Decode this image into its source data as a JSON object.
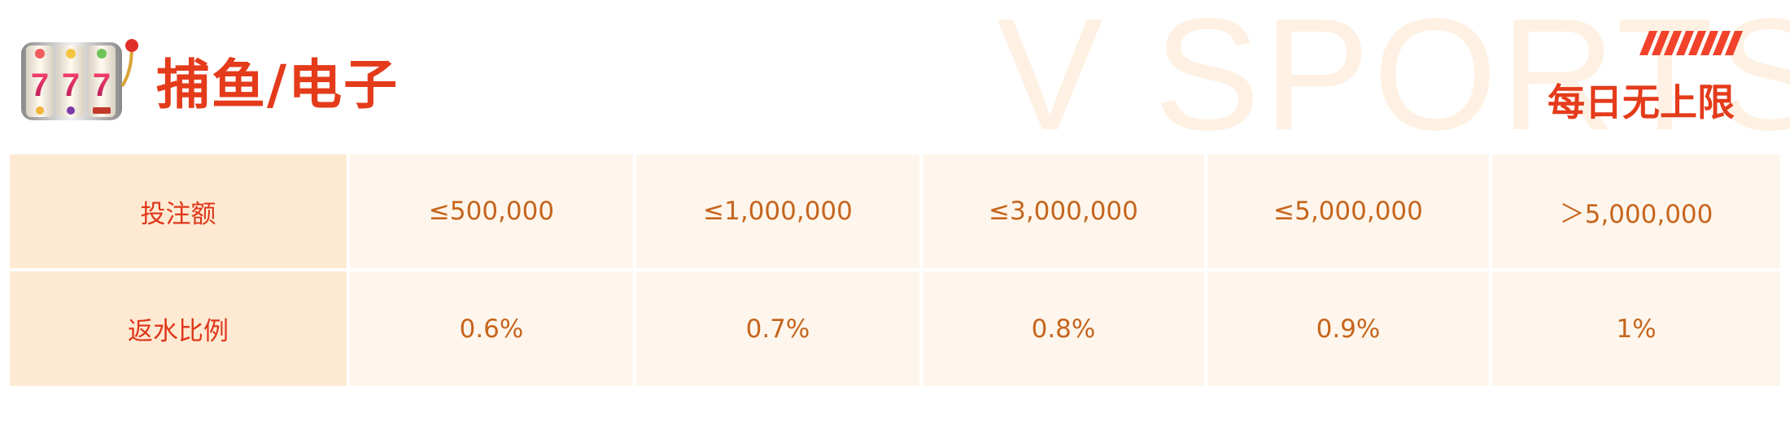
{
  "watermark": "V SPORTS",
  "header": {
    "icon": "slot-machine-icon",
    "title": "捕鱼/电子"
  },
  "badge": {
    "text": "每日无上限"
  },
  "table": {
    "rows": [
      {
        "label": "投注额",
        "cells": [
          "≤500,000",
          "≤1,000,000",
          "≤3,000,000",
          "≤5,000,000",
          "＞5,000,000"
        ]
      },
      {
        "label": "返水比例",
        "cells": [
          "0.6%",
          "0.7%",
          "0.8%",
          "0.9%",
          "1%"
        ]
      }
    ]
  },
  "colors": {
    "title_red": "#e43b1b",
    "value_orange": "#c6651d",
    "header_cell_bg": "#feead3",
    "cell_bg": "#fef6ec",
    "watermark": "#fef1e3"
  }
}
